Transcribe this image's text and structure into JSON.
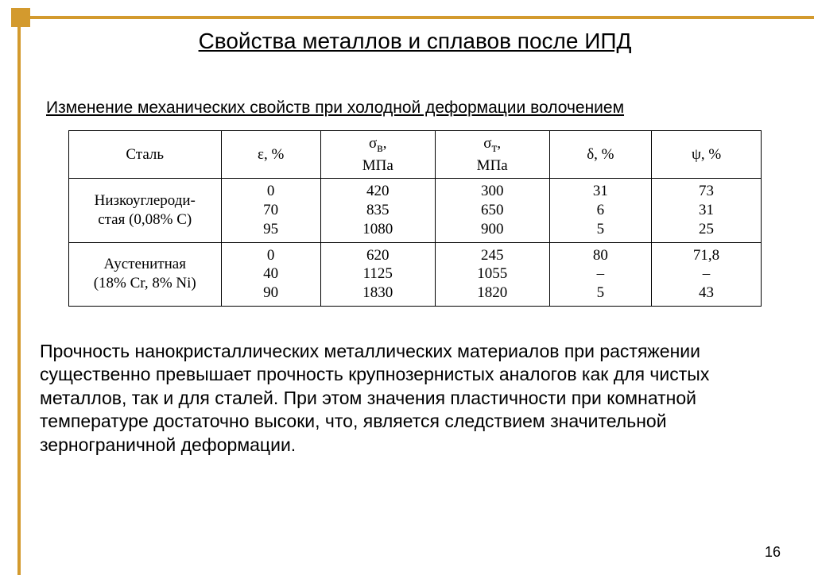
{
  "slide": {
    "title": "Свойства металлов и сплавов после ИПД",
    "subtitle": "Изменение механических свойств при холодной деформации волочением",
    "page_number": "16",
    "accent_color": "#d39a2e",
    "background_color": "#ffffff"
  },
  "table": {
    "type": "table",
    "border_color": "#000000",
    "font_family": "Times New Roman",
    "header_fontsize": 19,
    "cell_fontsize": 19,
    "columns": [
      {
        "label": "Сталь",
        "width_pct": 22
      },
      {
        "label": "ε, %",
        "width_pct": 13
      },
      {
        "label_top": "σ",
        "label_sub": "в",
        "label_unit": "МПа",
        "width_pct": 17
      },
      {
        "label_top": "σ",
        "label_sub": "т",
        "label_unit": "МПа",
        "width_pct": 17
      },
      {
        "label": "δ, %",
        "width_pct": 15
      },
      {
        "label": "ψ, %",
        "width_pct": 16
      }
    ],
    "groups": [
      {
        "label_line1": "Низкоуглероди-",
        "label_line2": "стая (0,08% C)",
        "rows": [
          {
            "eps": "0",
            "sigma_v": "420",
            "sigma_t": "300",
            "delta": "31",
            "psi": "73"
          },
          {
            "eps": "70",
            "sigma_v": "835",
            "sigma_t": "650",
            "delta": "6",
            "psi": "31"
          },
          {
            "eps": "95",
            "sigma_v": "1080",
            "sigma_t": "900",
            "delta": "5",
            "psi": "25"
          }
        ]
      },
      {
        "label_line1": "Аустенитная",
        "label_line2": "(18% Cr, 8% Ni)",
        "rows": [
          {
            "eps": "0",
            "sigma_v": "620",
            "sigma_t": "245",
            "delta": "80",
            "psi": "71,8"
          },
          {
            "eps": "40",
            "sigma_v": "1125",
            "sigma_t": "1055",
            "delta": "–",
            "psi": "–"
          },
          {
            "eps": "90",
            "sigma_v": "1830",
            "sigma_t": "1820",
            "delta": "5",
            "psi": "43"
          }
        ]
      }
    ]
  },
  "paragraph": "Прочность нанокристаллических металлических материалов при растяжении существенно превышает прочность крупнозернистых аналогов как для чистых металлов, так и для сталей. При этом значения пластичности при комнатной температуре достаточно высоки, что, является следствием значительной зернограничной деформации."
}
